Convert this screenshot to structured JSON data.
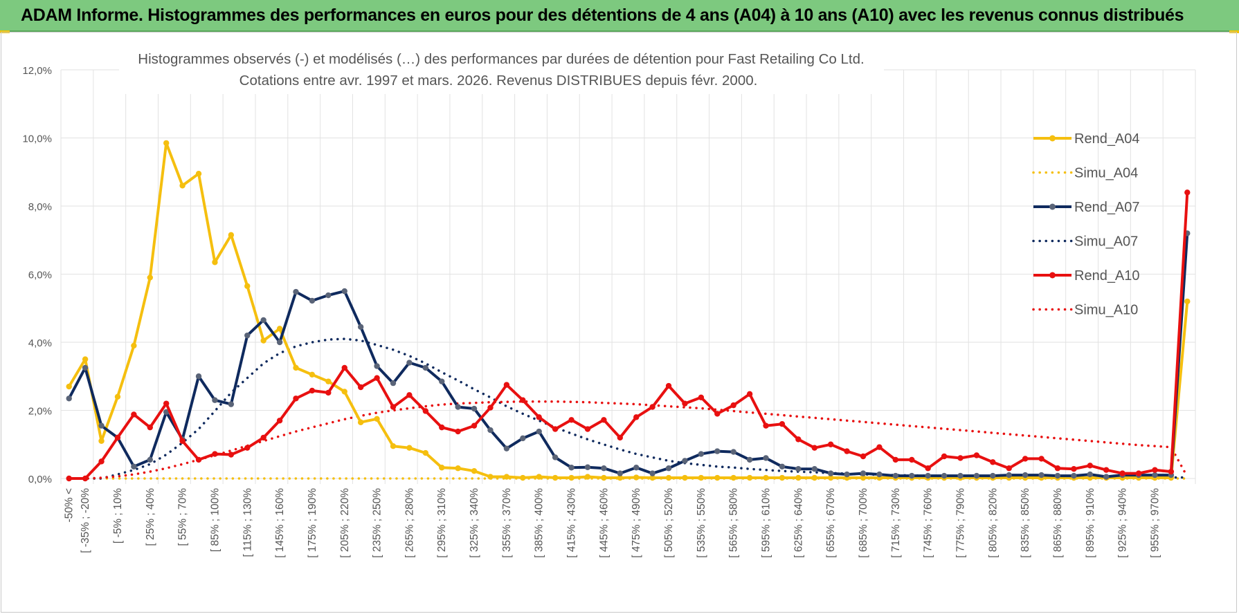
{
  "header": {
    "title": "ADAM Informe. Histogrammes des performances en euros pour des détentions de 4 ans (A04) à 10 ans (A10) avec les revenus connus distribués"
  },
  "colors": {
    "a04": "#f5bf0f",
    "a07": "#0f2a5e",
    "a07_marker": "#5a6478",
    "a10": "#e81010",
    "grid": "#e2e2e2",
    "banner": "#7dc97f"
  },
  "chart_data": {
    "type": "line",
    "title": "Histogrammes observés (-) et modélisés (…) des performances par durées de détention pour Fast Retailing Co Ltd.",
    "subtitle": "Cotations entre avr. 1997 et mars. 2026. Revenus DISTRIBUES depuis févr. 2000.",
    "xlabel": "",
    "ylabel": "",
    "ylim": [
      0,
      12
    ],
    "y_ticks": [
      "0,0%",
      "2,0%",
      "4,0%",
      "6,0%",
      "8,0%",
      "10,0%",
      "12,0%"
    ],
    "x_tick_labels": [
      "-50% <",
      "[ -35% ; -20%",
      "[ -5% ; 10%",
      "[ 25% ; 40%",
      "[ 55% ; 70%",
      "[ 85% ; 100%",
      "[ 115% ; 130%",
      "[ 145% ; 160%",
      "[ 175% ; 190%",
      "[ 205% ; 220%",
      "[ 235% ; 250%",
      "[ 265% ; 280%",
      "[ 295% ; 310%",
      "[ 325% ; 340%",
      "[ 355% ; 370%",
      "[ 385% ; 400%",
      "[ 415% ; 430%",
      "[ 445% ; 460%",
      "[ 475% ; 490%",
      "[ 505% ; 520%",
      "[ 535% ; 550%",
      "[ 565% ; 580%",
      "[ 595% ; 610%",
      "[ 625% ; 640%",
      "[ 655% ; 670%",
      "[ 685% ; 700%",
      "[ 715% ; 730%",
      "[ 745% ; 760%",
      "[ 775% ; 790%",
      "[ 805% ; 820%",
      "[ 835% ; 850%",
      "[ 865% ; 880%",
      "[ 895% ; 910%",
      "[ 925% ; 940%",
      "[ 955% ; 970%"
    ],
    "legend_position": "right",
    "n_points": 70,
    "series": [
      {
        "name": "Rend_A04",
        "style": "solid",
        "markers": true,
        "values": [
          2.7,
          3.5,
          1.1,
          2.4,
          3.9,
          5.9,
          9.85,
          8.6,
          8.95,
          6.35,
          7.15,
          5.65,
          4.05,
          4.4,
          3.25,
          3.05,
          2.85,
          2.55,
          1.65,
          1.75,
          0.95,
          0.9,
          0.75,
          0.32,
          0.3,
          0.22,
          0.05,
          0.05,
          0.02,
          0.05,
          0.02,
          0.02,
          0.05,
          0.02,
          0.02,
          0.03,
          0.02,
          0.02,
          0.02,
          0.02,
          0.02,
          0.02,
          0.02,
          0.02,
          0.02,
          0.02,
          0.02,
          0.02,
          0.02,
          0.02,
          0.02,
          0.02,
          0.02,
          0.02,
          0.02,
          0.02,
          0.02,
          0.02,
          0.02,
          0.02,
          0.02,
          0.02,
          0.02,
          0.02,
          0.02,
          0.02,
          0.02,
          0.02,
          0.02,
          5.2
        ]
      },
      {
        "name": "Simu_A04",
        "style": "dotted",
        "markers": false,
        "values": [
          0,
          0,
          0,
          0,
          0,
          0,
          0,
          0,
          0,
          0,
          0,
          0,
          0,
          0,
          0,
          0,
          0,
          0,
          0,
          0,
          0,
          0,
          0,
          0,
          0,
          0,
          0,
          0,
          0,
          0,
          0,
          0,
          0,
          0,
          0,
          0,
          0,
          0,
          0,
          0,
          0,
          0,
          0,
          0,
          0,
          0,
          0,
          0,
          0,
          0,
          0,
          0,
          0,
          0,
          0,
          0,
          0,
          0,
          0,
          0,
          0,
          0,
          0,
          0,
          0,
          0,
          0,
          0,
          0,
          0
        ]
      },
      {
        "name": "Rend_A07",
        "style": "solid",
        "markers": true,
        "values": [
          2.35,
          3.25,
          1.55,
          1.2,
          0.35,
          0.55,
          1.95,
          1.15,
          3.0,
          2.3,
          2.18,
          4.2,
          4.65,
          4.0,
          5.48,
          5.22,
          5.38,
          5.5,
          4.45,
          3.3,
          2.8,
          3.4,
          3.25,
          2.85,
          2.1,
          2.05,
          1.42,
          0.88,
          1.18,
          1.38,
          0.62,
          0.32,
          0.33,
          0.3,
          0.15,
          0.32,
          0.15,
          0.3,
          0.52,
          0.72,
          0.8,
          0.78,
          0.55,
          0.6,
          0.35,
          0.28,
          0.28,
          0.15,
          0.12,
          0.15,
          0.12,
          0.08,
          0.08,
          0.08,
          0.08,
          0.08,
          0.08,
          0.08,
          0.1,
          0.1,
          0.1,
          0.08,
          0.08,
          0.12,
          0.05,
          0.1,
          0.1,
          0.1,
          0.1,
          7.2
        ]
      },
      {
        "name": "Simu_A07",
        "style": "dotted",
        "markers": false,
        "values": [
          0,
          0,
          0,
          0.12,
          0.25,
          0.42,
          0.7,
          1.05,
          1.45,
          1.98,
          2.52,
          2.95,
          3.38,
          3.68,
          3.88,
          4.0,
          4.08,
          4.1,
          4.05,
          3.92,
          3.78,
          3.6,
          3.38,
          3.12,
          2.88,
          2.62,
          2.38,
          2.12,
          1.9,
          1.7,
          1.5,
          1.32,
          1.15,
          1.0,
          0.85,
          0.72,
          0.62,
          0.52,
          0.45,
          0.4,
          0.35,
          0.32,
          0.28,
          0.25,
          0.22,
          0.2,
          0.18,
          0.16,
          0.14,
          0.12,
          0.11,
          0.1,
          0.09,
          0.08,
          0.07,
          0.06,
          0.05,
          0.05,
          0.05,
          0.04,
          0.04,
          0.04,
          0.03,
          0.03,
          0.03,
          0.03,
          0.03,
          0.03,
          0.03,
          0.03
        ]
      },
      {
        "name": "Rend_A10",
        "style": "solid",
        "markers": true,
        "values": [
          0,
          0,
          0.5,
          1.2,
          1.88,
          1.5,
          2.2,
          1.1,
          0.55,
          0.72,
          0.7,
          0.9,
          1.2,
          1.7,
          2.35,
          2.58,
          2.52,
          3.25,
          2.68,
          2.95,
          2.1,
          2.45,
          1.98,
          1.5,
          1.38,
          1.55,
          2.08,
          2.75,
          2.3,
          1.8,
          1.45,
          1.72,
          1.45,
          1.72,
          1.2,
          1.8,
          2.1,
          2.72,
          2.2,
          2.38,
          1.9,
          2.15,
          2.48,
          1.55,
          1.6,
          1.15,
          0.9,
          1.0,
          0.8,
          0.65,
          0.92,
          0.55,
          0.55,
          0.3,
          0.65,
          0.6,
          0.68,
          0.48,
          0.3,
          0.58,
          0.58,
          0.3,
          0.28,
          0.38,
          0.25,
          0.15,
          0.15,
          0.25,
          0.2,
          8.4
        ]
      },
      {
        "name": "Simu_A10",
        "style": "dotted",
        "markers": false,
        "values": [
          0,
          0,
          0.02,
          0.06,
          0.12,
          0.2,
          0.3,
          0.42,
          0.55,
          0.68,
          0.82,
          0.96,
          1.1,
          1.24,
          1.38,
          1.5,
          1.62,
          1.74,
          1.84,
          1.93,
          2.0,
          2.06,
          2.12,
          2.17,
          2.2,
          2.22,
          2.24,
          2.25,
          2.26,
          2.26,
          2.26,
          2.25,
          2.24,
          2.22,
          2.2,
          2.18,
          2.15,
          2.12,
          2.09,
          2.06,
          2.02,
          1.98,
          1.94,
          1.9,
          1.86,
          1.82,
          1.78,
          1.74,
          1.7,
          1.66,
          1.62,
          1.58,
          1.54,
          1.5,
          1.46,
          1.42,
          1.38,
          1.34,
          1.3,
          1.26,
          1.22,
          1.18,
          1.14,
          1.1,
          1.06,
          1.02,
          0.98,
          0.95,
          0.92,
          0.05
        ]
      }
    ]
  }
}
